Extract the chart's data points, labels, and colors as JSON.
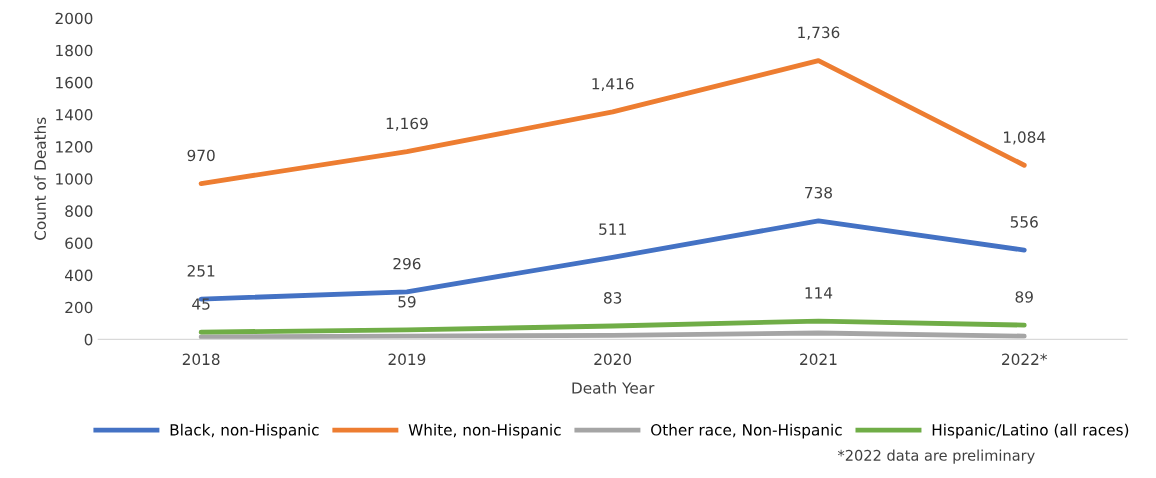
{
  "chart_data": {
    "type": "line",
    "xlabel": "Death Year",
    "ylabel": "Count of Deaths",
    "categories": [
      "2018",
      "2019",
      "2020",
      "2021",
      "2022*"
    ],
    "series": [
      {
        "name": "Black, non-Hispanic",
        "color": "#4472c4",
        "values": [
          251,
          296,
          511,
          738,
          556
        ],
        "value_labels": [
          "251",
          "296",
          "511",
          "738",
          "556"
        ]
      },
      {
        "name": "White, non-Hispanic",
        "color": "#ed7d31",
        "values": [
          970,
          1169,
          1416,
          1736,
          1084
        ],
        "value_labels": [
          "970",
          "1,169",
          "1,416",
          "1,736",
          "1,084"
        ]
      },
      {
        "name": "Other race, Non-Hispanic",
        "color": "#a5a5a5",
        "values": [
          15,
          20,
          25,
          40,
          20
        ]
      },
      {
        "name": "Hispanic/Latino (all races)",
        "color": "#70ad47",
        "values": [
          45,
          59,
          83,
          114,
          89
        ],
        "value_labels": [
          "45",
          "59",
          "83",
          "114",
          "89"
        ]
      }
    ],
    "ylim": [
      0,
      2000
    ],
    "yticks": [
      0,
      200,
      400,
      600,
      800,
      1000,
      1200,
      1400,
      1600,
      1800,
      2000
    ],
    "grid": false,
    "legend": "bottom",
    "marker": "none",
    "line_style": "solid",
    "annotations": [
      "*2022 data are preliminary"
    ]
  }
}
